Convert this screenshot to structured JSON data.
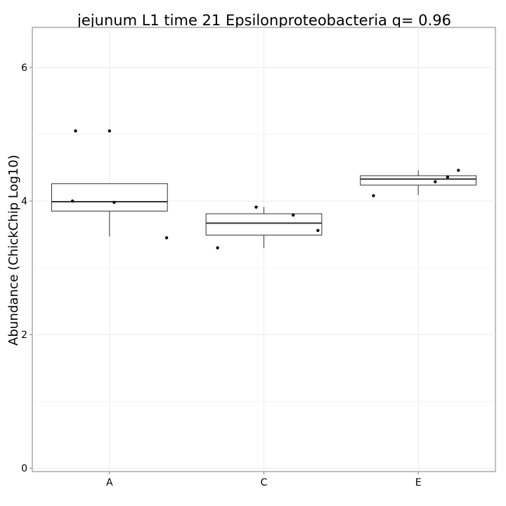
{
  "chart_data": {
    "type": "box",
    "title": "jejunum L1 time 21 Epsilonproteobacteria q= 0.96",
    "xlabel": "",
    "ylabel": "Abundance (ChickChip Log10)",
    "categories": [
      "A",
      "C",
      "E"
    ],
    "ylim": [
      -0.05,
      6.6
    ],
    "yticks": [
      0,
      2,
      4,
      6
    ],
    "grid": true,
    "boxes": [
      {
        "category": "A",
        "lower_whisker": 3.47,
        "q1": 3.85,
        "median": 3.99,
        "q3": 4.26,
        "upper_whisker": 4.26
      },
      {
        "category": "C",
        "lower_whisker": 3.3,
        "q1": 3.49,
        "median": 3.67,
        "q3": 3.81,
        "upper_whisker": 3.91
      },
      {
        "category": "E",
        "lower_whisker": 4.09,
        "q1": 4.24,
        "median": 4.33,
        "q3": 4.38,
        "upper_whisker": 4.46
      }
    ],
    "points": [
      {
        "category": "A",
        "jitter": -0.24,
        "y": 4.0
      },
      {
        "category": "A",
        "jitter": -0.22,
        "y": 5.05
      },
      {
        "category": "A",
        "jitter": 0.0,
        "y": 5.05
      },
      {
        "category": "A",
        "jitter": 0.03,
        "y": 3.98
      },
      {
        "category": "A",
        "jitter": 0.37,
        "y": 3.45
      },
      {
        "category": "C",
        "jitter": -0.3,
        "y": 3.3
      },
      {
        "category": "C",
        "jitter": -0.05,
        "y": 3.91
      },
      {
        "category": "C",
        "jitter": 0.19,
        "y": 3.79
      },
      {
        "category": "C",
        "jitter": 0.35,
        "y": 3.56
      },
      {
        "category": "E",
        "jitter": -0.29,
        "y": 4.08
      },
      {
        "category": "E",
        "jitter": 0.11,
        "y": 4.29
      },
      {
        "category": "E",
        "jitter": 0.19,
        "y": 4.36
      },
      {
        "category": "E",
        "jitter": 0.26,
        "y": 4.46
      }
    ]
  }
}
